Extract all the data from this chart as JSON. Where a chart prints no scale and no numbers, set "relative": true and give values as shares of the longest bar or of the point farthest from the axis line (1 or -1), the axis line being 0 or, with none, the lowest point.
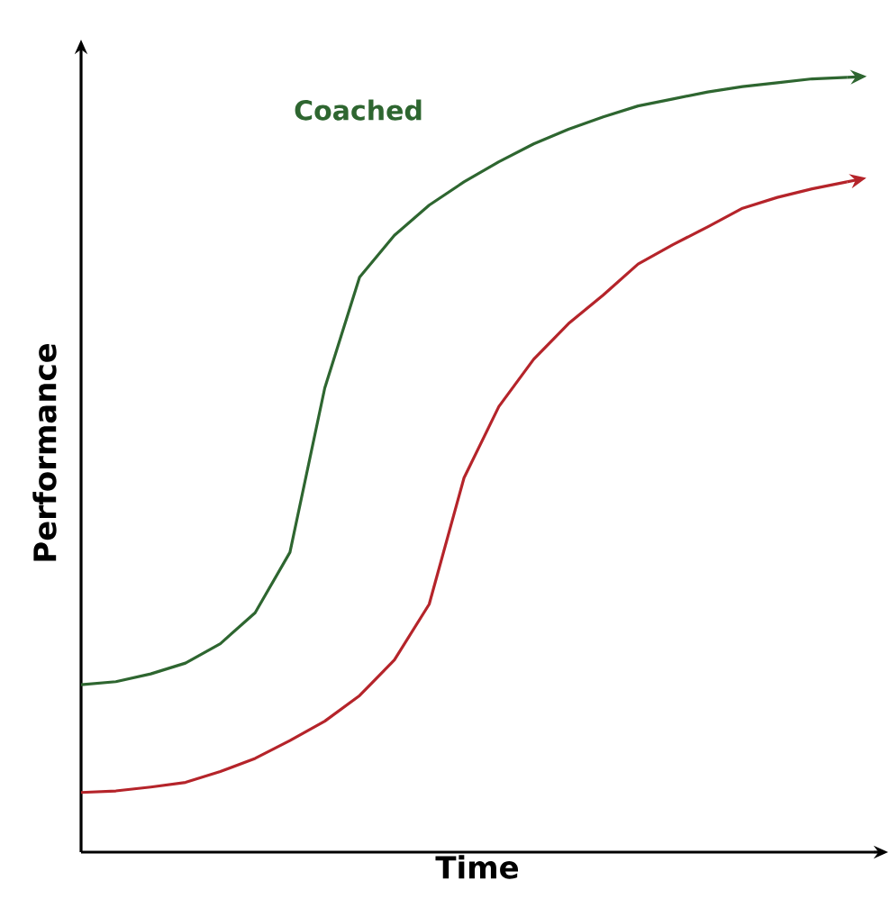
{
  "chart_data": {
    "type": "line",
    "relative": true,
    "xlabel": "Time",
    "ylabel": "Performance",
    "categories": [
      null,
      null,
      null,
      null,
      null,
      null,
      null,
      null,
      null,
      null,
      null,
      null,
      null,
      null,
      null,
      null,
      null,
      null,
      null,
      null,
      null,
      null,
      null
    ],
    "series": [
      {
        "name": "Coached",
        "color": "#2e6630",
        "values": [
          0.216,
          0.22,
          0.23,
          0.244,
          0.269,
          0.309,
          0.387,
          0.599,
          0.742,
          0.796,
          0.835,
          0.865,
          0.891,
          0.914,
          0.933,
          0.949,
          0.963,
          0.972,
          0.981,
          0.988,
          0.993,
          0.998,
          1.0
        ]
      },
      {
        "color": "#b5242a",
        "values": [
          0.077,
          0.079,
          0.084,
          0.09,
          0.104,
          0.121,
          0.144,
          0.169,
          0.202,
          0.248,
          0.32,
          0.483,
          0.575,
          0.636,
          0.682,
          0.719,
          0.759,
          0.784,
          0.807,
          0.831,
          0.845,
          0.856,
          0.865
        ]
      }
    ]
  }
}
